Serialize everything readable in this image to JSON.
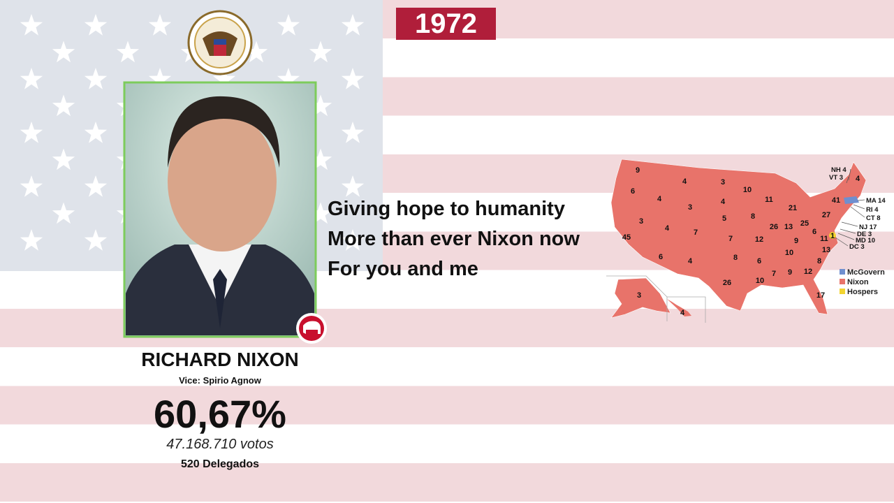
{
  "header": {
    "year": "1972"
  },
  "candidate": {
    "name": "RICHARD NIXON",
    "vice": "Vice: Spirio Agnow",
    "percent": "60,67%",
    "votes": "47.168.710 votos",
    "delegates": "520 Delegados"
  },
  "lyrics": [
    "Giving hope to humanity",
    "More than ever Nixon now",
    "For you and me"
  ],
  "map": {
    "labels": [
      "9",
      "6",
      "4",
      "4",
      "3",
      "10",
      "3",
      "4",
      "11",
      "21",
      "4",
      "3",
      "4",
      "7",
      "5",
      "8",
      "26",
      "13",
      "25",
      "27",
      "41",
      "45",
      "7",
      "12",
      "9",
      "6",
      "11",
      "13",
      "6",
      "4",
      "8",
      "6",
      "10",
      "8",
      "7",
      "9",
      "12",
      "26",
      "10",
      "17",
      "3",
      "4",
      "1"
    ],
    "callouts": [
      "NH 4",
      "VT 3",
      "MA 14",
      "RI 4",
      "CT 8",
      "NJ 17",
      "DE 3",
      "MD 10",
      "DC 3"
    ],
    "legend": [
      {
        "name": "McGovern",
        "color": "#6f8fcf"
      },
      {
        "name": "Nixon",
        "color": "#e8736a"
      },
      {
        "name": "Hospers",
        "color": "#f2d431"
      }
    ]
  }
}
